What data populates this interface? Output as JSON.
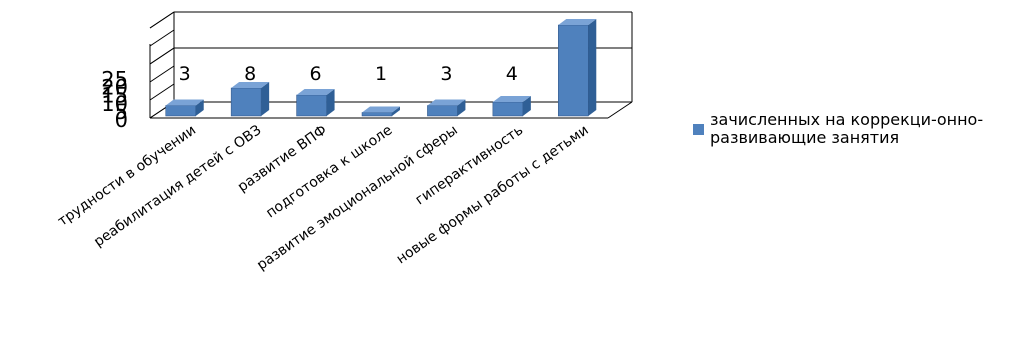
{
  "chart_data": {
    "type": "bar",
    "style": "3d-column",
    "categories": [
      "трудности в обучении",
      "реабилитация детей с ОВЗ",
      "развитие ВПФ",
      "подготовка к школе",
      "развитие эмоциональной сферы",
      "гиперактивность",
      "новые формы работы с детьми"
    ],
    "series": [
      {
        "name": "зачисленных на коррекци-онно-развивающие занятия",
        "values": [
          3,
          8,
          6,
          1,
          3,
          4,
          26
        ],
        "data_labels": [
          "3",
          "8",
          "6",
          "1",
          "3",
          "4",
          ""
        ]
      }
    ],
    "yticks": [
      "0",
      "5",
      "10",
      "15",
      "20",
      "25"
    ],
    "ylim": [
      0,
      25
    ],
    "grid": true,
    "legend_position": "right",
    "colors": {
      "bar": "#4f81bd",
      "bar_dark": "#2f5f96",
      "bar_top": "#7aa3d6"
    }
  }
}
